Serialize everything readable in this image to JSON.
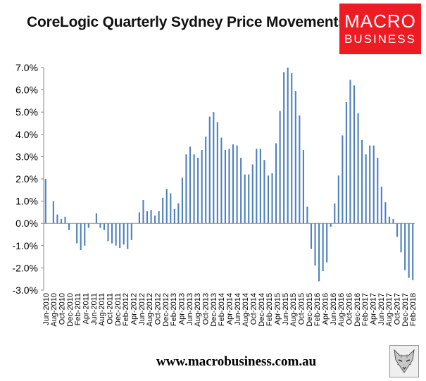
{
  "header": {
    "title": "CoreLogic Quarterly Sydney Price Movements",
    "logo_line1": "MACRO",
    "logo_line2": "BUSINESS"
  },
  "footer": {
    "url": "www.macrobusiness.com.au"
  },
  "colors": {
    "bar": "#4f81bd",
    "logo_background": "#ed1b24",
    "axis": "#868686"
  },
  "icons": {
    "footer_logo": "fox-head-icon"
  },
  "chart_data": {
    "type": "bar",
    "title": "CoreLogic Quarterly Sydney Price Movements",
    "xlabel": "",
    "ylabel": "",
    "ylim": [
      -3.0,
      7.0
    ],
    "yticks": [
      "-3.0%",
      "-2.0%",
      "-1.0%",
      "0.0%",
      "1.0%",
      "2.0%",
      "3.0%",
      "4.0%",
      "5.0%",
      "6.0%",
      "7.0%"
    ],
    "grid": false,
    "legend": "none",
    "x_tick_labels": [
      "Jun-2010",
      "Aug-2010",
      "Oct-2010",
      "Dec-2010",
      "Feb-2011",
      "Apr-2011",
      "Jun-2011",
      "Aug-2011",
      "Oct-2011",
      "Dec-2011",
      "Feb-2012",
      "Apr-2012",
      "Jun-2012",
      "Aug-2012",
      "Oct-2012",
      "Dec-2012",
      "Feb-2013",
      "Apr-2013",
      "Jun-2013",
      "Aug-2013",
      "Oct-2013",
      "Dec-2013",
      "Feb-2014",
      "Apr-2014",
      "Jun-2014",
      "Aug-2014",
      "Oct-2014",
      "Dec-2014",
      "Feb-2015",
      "Apr-2015",
      "Jun-2015",
      "Aug-2015",
      "Oct-2015",
      "Dec-2015",
      "Feb-2016",
      "Apr-2016",
      "Jun-2016",
      "Aug-2016",
      "Oct-2016",
      "Dec-2016",
      "Feb-2017",
      "Apr-2017",
      "Jun-2017",
      "Aug-2017",
      "Oct-2017",
      "Dec-2017",
      "Feb-2018"
    ],
    "x_start": "Jun-2010",
    "x_end": "Feb-2018",
    "values": [
      2.0,
      0.0,
      1.0,
      0.4,
      0.2,
      0.3,
      -0.3,
      0.0,
      -0.9,
      -1.2,
      -1.0,
      -0.2,
      0.0,
      0.45,
      -0.2,
      -0.3,
      -0.8,
      -0.9,
      -1.0,
      -1.1,
      -0.95,
      -1.15,
      -0.75,
      0.0,
      0.5,
      1.05,
      0.55,
      0.6,
      0.35,
      0.55,
      1.15,
      1.55,
      1.35,
      0.65,
      0.9,
      2.05,
      3.1,
      3.45,
      3.1,
      2.95,
      3.3,
      3.9,
      4.8,
      5.0,
      4.55,
      3.85,
      3.3,
      3.35,
      3.55,
      3.5,
      2.95,
      2.2,
      2.2,
      2.65,
      3.35,
      3.35,
      2.85,
      2.15,
      2.25,
      3.6,
      5.05,
      6.8,
      7.0,
      6.75,
      5.95,
      4.85,
      3.3,
      0.75,
      -1.15,
      -1.9,
      -2.6,
      -2.15,
      -1.75,
      -0.15,
      0.9,
      2.15,
      3.95,
      5.45,
      6.45,
      6.2,
      4.95,
      3.75,
      3.1,
      3.5,
      3.5,
      2.95,
      1.65,
      0.95,
      0.3,
      0.2,
      -0.6,
      -1.3,
      -2.1,
      -2.45,
      -2.55
    ]
  }
}
